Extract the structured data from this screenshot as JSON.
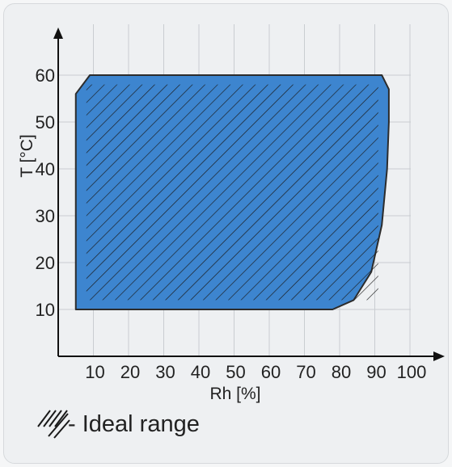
{
  "chart_data": {
    "type": "area",
    "xlabel": "Rh [%]",
    "ylabel": "T [°C]",
    "xlim": [
      0,
      100
    ],
    "ylim": [
      0,
      65
    ],
    "x_ticks": [
      "10",
      "20",
      "30",
      "40",
      "50",
      "60",
      "70",
      "80",
      "90",
      "100"
    ],
    "y_ticks": [
      "10",
      "20",
      "30",
      "40",
      "50",
      "60"
    ],
    "grid": true,
    "region": {
      "outline": [
        [
          5,
          10
        ],
        [
          78,
          10
        ],
        [
          84,
          12
        ],
        [
          89,
          18
        ],
        [
          92,
          28
        ],
        [
          93.5,
          40
        ],
        [
          94,
          50
        ],
        [
          94,
          57
        ],
        [
          92,
          60
        ],
        [
          9,
          60
        ],
        [
          5,
          56
        ],
        [
          5,
          10
        ]
      ],
      "fill_color": "#3d85cf",
      "stroke_color": "#2c2c2c"
    },
    "hatched_region": {
      "x": [
        8,
        91
      ],
      "y": [
        12,
        58
      ],
      "hatch_color": "#1a1a1a"
    },
    "legend": {
      "label": "- Ideal range",
      "placement": "bottom-left"
    }
  }
}
